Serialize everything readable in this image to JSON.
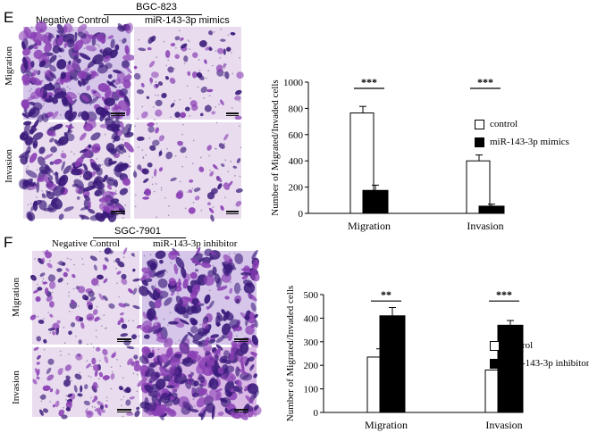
{
  "panel_e": {
    "letter": "E",
    "cell_line": "BGC-823",
    "col_labels": [
      "Negative Control",
      "miR-143-3p mimics"
    ],
    "row_labels": [
      "Migration",
      "Invasion"
    ]
  },
  "panel_f": {
    "letter": "F",
    "cell_line": "SGC-7901",
    "col_labels": [
      "Negative Control",
      "miR-143-3p inhibitor"
    ],
    "row_labels": [
      "Migration",
      "Invasion"
    ]
  },
  "colors": {
    "stain_dark": "#3a1a7a",
    "stain_purple": "#8a3fb4",
    "stain_light": "#e9dcef",
    "control_bar": "#ffffff",
    "treatment_bar": "#000000"
  },
  "chart_data": [
    {
      "type": "bar",
      "title": "",
      "xlabel": "",
      "ylabel": "Number of Migrated/Invaded cells",
      "categories": [
        "Migration",
        "Invasion"
      ],
      "ylim": [
        0,
        1000
      ],
      "yticks": [
        "0",
        "200",
        "400",
        "600",
        "800",
        "1000"
      ],
      "series": [
        {
          "name": "control",
          "values": [
            765,
            400
          ],
          "errors": [
            50,
            45
          ],
          "color": "#ffffff"
        },
        {
          "name": "miR-143-3p mimics",
          "values": [
            175,
            55
          ],
          "errors": [
            40,
            15
          ],
          "color": "#000000"
        }
      ],
      "significance": [
        "***",
        "***"
      ],
      "legend": "right",
      "grid": false
    },
    {
      "type": "bar",
      "title": "",
      "xlabel": "",
      "ylabel": "Number of Migrated/Invaded cells",
      "categories": [
        "Migration",
        "Invasion"
      ],
      "ylim": [
        0,
        500
      ],
      "yticks": [
        "0",
        "100",
        "200",
        "300",
        "400",
        "500"
      ],
      "series": [
        {
          "name": "control",
          "values": [
            235,
            180
          ],
          "errors": [
            35,
            15
          ],
          "color": "#ffffff"
        },
        {
          "name": "miR-143-3p inhibitor",
          "values": [
            410,
            370
          ],
          "errors": [
            35,
            20
          ],
          "color": "#000000"
        }
      ],
      "significance": [
        "**",
        "***"
      ],
      "legend": "right",
      "grid": false
    }
  ]
}
